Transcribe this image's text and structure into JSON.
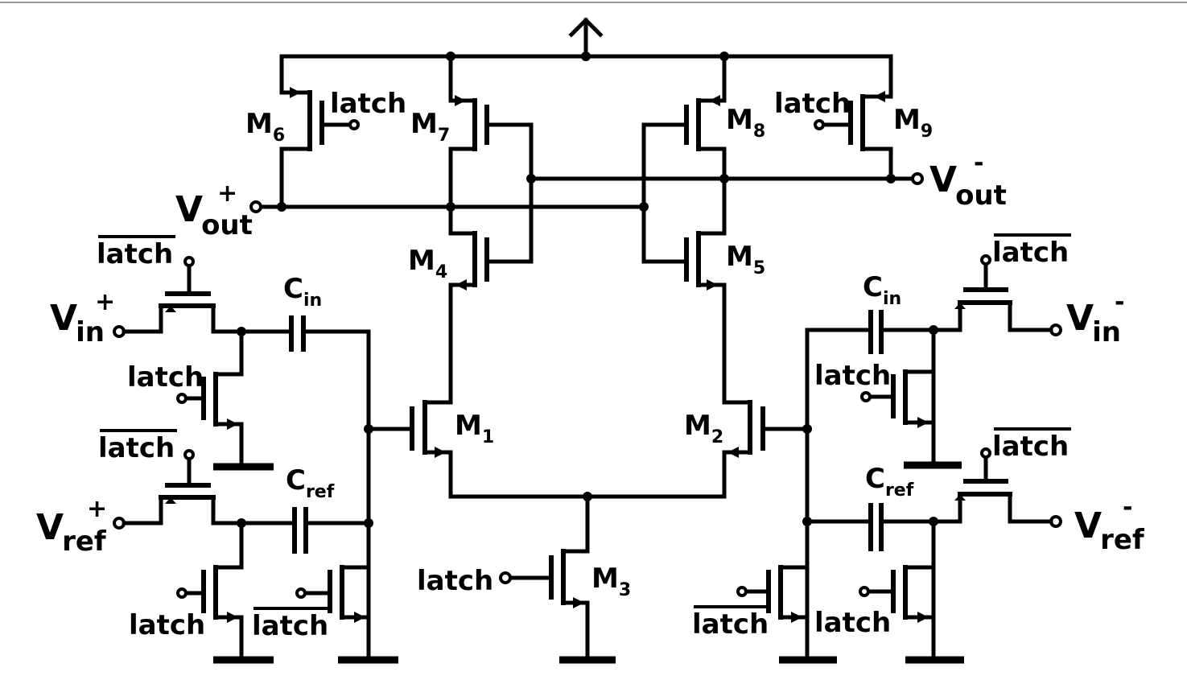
{
  "labels": {
    "latch": "latch",
    "latch_bar": "latch",
    "v_out_plus_main": "V",
    "v_out_plus_sub": "out",
    "v_out_plus_sign": "+",
    "v_out_minus_main": "V",
    "v_out_minus_sub": "out",
    "v_out_minus_sign": "-",
    "v_in_plus_main": "V",
    "v_in_plus_sub": "in",
    "v_in_plus_sign": "+",
    "v_in_minus_main": "V",
    "v_in_minus_sub": "in",
    "v_in_minus_sign": "-",
    "v_ref_plus_main": "V",
    "v_ref_plus_sub": "ref",
    "v_ref_plus_sign": "+",
    "v_ref_minus_main": "V",
    "v_ref_minus_sub": "ref",
    "v_ref_minus_sign": "-",
    "c_in_main": "C",
    "c_in_sub": "in",
    "c_ref_main": "C",
    "c_ref_sub": "ref"
  },
  "transistors": [
    {
      "id": "m1",
      "main": "M",
      "sub": "1"
    },
    {
      "id": "m2",
      "main": "M",
      "sub": "2"
    },
    {
      "id": "m3",
      "main": "M",
      "sub": "3"
    },
    {
      "id": "m4",
      "main": "M",
      "sub": "4"
    },
    {
      "id": "m5",
      "main": "M",
      "sub": "5"
    },
    {
      "id": "m6",
      "main": "M",
      "sub": "6"
    },
    {
      "id": "m7",
      "main": "M",
      "sub": "7"
    },
    {
      "id": "m8",
      "main": "M",
      "sub": "8"
    },
    {
      "id": "m9",
      "main": "M",
      "sub": "9"
    }
  ]
}
